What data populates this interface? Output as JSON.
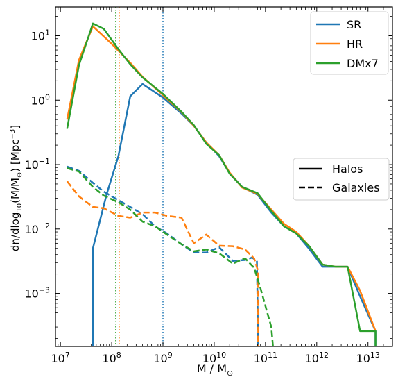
{
  "chart_data": {
    "type": "line",
    "title": "",
    "xlabel_main": "M / M",
    "xlabel_sub": "⊙",
    "ylabel_parts": {
      "a": "dn/dlog",
      "a_sub": "10",
      "b": "(M/M",
      "b_sub": "⊙",
      "c": ") [Mpc",
      "c_sup": "−3",
      "d": "]"
    },
    "xscale": "log",
    "yscale": "log",
    "xlim": [
      8000000.0,
      30000000000000.0
    ],
    "ylim": [
      0.00015,
      28
    ],
    "x_ticks": [
      {
        "value": 10000000.0,
        "base": "10",
        "exp": "7"
      },
      {
        "value": 100000000.0,
        "base": "10",
        "exp": "8"
      },
      {
        "value": 1000000000.0,
        "base": "10",
        "exp": "9"
      },
      {
        "value": 10000000000.0,
        "base": "10",
        "exp": "10"
      },
      {
        "value": 100000000000.0,
        "base": "10",
        "exp": "11"
      },
      {
        "value": 1000000000000.0,
        "base": "10",
        "exp": "12"
      },
      {
        "value": 10000000000000.0,
        "base": "10",
        "exp": "13"
      }
    ],
    "y_ticks": [
      {
        "value": 0.001,
        "base": "10",
        "exp": "−3"
      },
      {
        "value": 0.01,
        "base": "10",
        "exp": "−2"
      },
      {
        "value": 0.1,
        "base": "10",
        "exp": "−1"
      },
      {
        "value": 1,
        "base": "10",
        "exp": "0"
      },
      {
        "value": 10,
        "base": "10",
        "exp": "1"
      }
    ],
    "vlines": [
      {
        "x": 120000000.0,
        "color": "#2ca02c"
      },
      {
        "x": 140000000.0,
        "color": "#ff7f0e"
      },
      {
        "x": 1000000000.0,
        "color": "#1f77b4"
      }
    ],
    "series": [
      {
        "name": "SR",
        "kind": "Halos",
        "color": "#1f77b4",
        "dash": "solid",
        "points": [
          [
            43000000.0,
            0.00015
          ],
          [
            43000000.0,
            0.005
          ],
          [
            80000000.0,
            0.035
          ],
          [
            135000000.0,
            0.135
          ],
          [
            230000000.0,
            1.15
          ],
          [
            400000000.0,
            1.78
          ],
          [
            1000000000.0,
            1.1
          ],
          [
            2300000000.0,
            0.62
          ],
          [
            4000000000.0,
            0.4
          ],
          [
            7000000000.0,
            0.22
          ],
          [
            12500000000.0,
            0.135
          ],
          [
            20000000000.0,
            0.074
          ],
          [
            35000000000.0,
            0.045
          ],
          [
            70000000000.0,
            0.034
          ],
          [
            130000000000.0,
            0.018
          ],
          [
            230000000000.0,
            0.011
          ],
          [
            400000000000.0,
            0.0085
          ],
          [
            700000000000.0,
            0.005
          ],
          [
            1300000000000.0,
            0.0026
          ],
          [
            2300000000000.0,
            0.0026
          ],
          [
            4000000000000.0,
            0.0026
          ],
          [
            7000000000000.0,
            0.0009
          ],
          [
            14000000000000.0,
            0.00026
          ],
          [
            14000000000000.0,
            0.00015
          ]
        ]
      },
      {
        "name": "HR",
        "kind": "Halos",
        "color": "#ff7f0e",
        "dash": "solid",
        "points": [
          [
            13500000.0,
            0.5
          ],
          [
            23000000.0,
            4.2
          ],
          [
            43000000.0,
            14
          ],
          [
            100000000.0,
            7.5
          ],
          [
            230000000.0,
            3.8
          ],
          [
            400000000.0,
            2.3
          ],
          [
            1000000000.0,
            1.2
          ],
          [
            2300000000.0,
            0.65
          ],
          [
            4000000000.0,
            0.4
          ],
          [
            7000000000.0,
            0.22
          ],
          [
            12500000000.0,
            0.14
          ],
          [
            20000000000.0,
            0.075
          ],
          [
            35000000000.0,
            0.044
          ],
          [
            70000000000.0,
            0.035
          ],
          [
            130000000000.0,
            0.02
          ],
          [
            230000000000.0,
            0.012
          ],
          [
            400000000000.0,
            0.009
          ],
          [
            700000000000.0,
            0.0055
          ],
          [
            1300000000000.0,
            0.0028
          ],
          [
            2300000000000.0,
            0.0026
          ],
          [
            4000000000000.0,
            0.0026
          ],
          [
            7000000000000.0,
            0.0011
          ],
          [
            14000000000000.0,
            0.00026
          ]
        ]
      },
      {
        "name": "DMx7",
        "kind": "Halos",
        "color": "#2ca02c",
        "dash": "solid",
        "points": [
          [
            13500000.0,
            0.36
          ],
          [
            23000000.0,
            3.5
          ],
          [
            43000000.0,
            15.5
          ],
          [
            70000000.0,
            12.8
          ],
          [
            135000000.0,
            6.2
          ],
          [
            230000000.0,
            3.6
          ],
          [
            400000000.0,
            2.25
          ],
          [
            1000000000.0,
            1.25
          ],
          [
            2300000000.0,
            0.66
          ],
          [
            4000000000.0,
            0.41
          ],
          [
            7000000000.0,
            0.21
          ],
          [
            12500000000.0,
            0.14
          ],
          [
            20000000000.0,
            0.072
          ],
          [
            35000000000.0,
            0.045
          ],
          [
            70000000000.0,
            0.036
          ],
          [
            130000000000.0,
            0.019
          ],
          [
            230000000000.0,
            0.011
          ],
          [
            400000000000.0,
            0.0085
          ],
          [
            700000000000.0,
            0.0055
          ],
          [
            1300000000000.0,
            0.0028
          ],
          [
            2300000000000.0,
            0.0026
          ],
          [
            4000000000000.0,
            0.0026
          ],
          [
            7000000000000.0,
            0.00026
          ],
          [
            14000000000000.0,
            0.00026
          ],
          [
            14000000000000.0,
            0.00015
          ]
        ]
      },
      {
        "name": "SR",
        "kind": "Galaxies",
        "color": "#1f77b4",
        "dash": "dashed",
        "points": [
          [
            13500000.0,
            0.093
          ],
          [
            23000000.0,
            0.08
          ],
          [
            43000000.0,
            0.052
          ],
          [
            70000000.0,
            0.038
          ],
          [
            135000000.0,
            0.028
          ],
          [
            230000000.0,
            0.022
          ],
          [
            400000000.0,
            0.017
          ],
          [
            700000000.0,
            0.011
          ],
          [
            1200000000.0,
            0.0085
          ],
          [
            2300000000.0,
            0.0058
          ],
          [
            4000000000.0,
            0.0043
          ],
          [
            7000000000.0,
            0.0043
          ],
          [
            12500000000.0,
            0.0052
          ],
          [
            23000000000.0,
            0.0032
          ],
          [
            40000000000.0,
            0.0033
          ],
          [
            55000000000.0,
            0.0036
          ],
          [
            68000000000.0,
            0.0032
          ],
          [
            72000000000.0,
            0.00015
          ]
        ]
      },
      {
        "name": "HR",
        "kind": "Galaxies",
        "color": "#ff7f0e",
        "dash": "dashed",
        "points": [
          [
            13500000.0,
            0.055
          ],
          [
            23000000.0,
            0.032
          ],
          [
            43000000.0,
            0.022
          ],
          [
            70000000.0,
            0.021
          ],
          [
            135000000.0,
            0.016
          ],
          [
            230000000.0,
            0.015
          ],
          [
            400000000.0,
            0.018
          ],
          [
            700000000.0,
            0.018
          ],
          [
            1200000000.0,
            0.016
          ],
          [
            2300000000.0,
            0.015
          ],
          [
            4000000000.0,
            0.006
          ],
          [
            7000000000.0,
            0.0082
          ],
          [
            12500000000.0,
            0.0055
          ],
          [
            23000000000.0,
            0.0054
          ],
          [
            40000000000.0,
            0.0048
          ],
          [
            60000000000.0,
            0.0035
          ],
          [
            72000000000.0,
            0.0022
          ],
          [
            72000000000.0,
            0.00015
          ]
        ]
      },
      {
        "name": "DMx7",
        "kind": "Galaxies",
        "color": "#2ca02c",
        "dash": "dashed",
        "points": [
          [
            13500000.0,
            0.088
          ],
          [
            23000000.0,
            0.078
          ],
          [
            43000000.0,
            0.045
          ],
          [
            70000000.0,
            0.033
          ],
          [
            135000000.0,
            0.026
          ],
          [
            230000000.0,
            0.02
          ],
          [
            400000000.0,
            0.013
          ],
          [
            700000000.0,
            0.011
          ],
          [
            1200000000.0,
            0.0082
          ],
          [
            2300000000.0,
            0.0058
          ],
          [
            4000000000.0,
            0.0045
          ],
          [
            7000000000.0,
            0.0048
          ],
          [
            12500000000.0,
            0.0042
          ],
          [
            23000000000.0,
            0.0029
          ],
          [
            40000000000.0,
            0.0035
          ],
          [
            60000000000.0,
            0.0025
          ],
          [
            80000000000.0,
            0.0012
          ],
          [
            130000000000.0,
            0.0003
          ],
          [
            140000000000.0,
            0.00015
          ]
        ]
      }
    ],
    "legend_series": {
      "placement": "top-right",
      "entries": [
        {
          "label": "SR",
          "color": "#1f77b4"
        },
        {
          "label": "HR",
          "color": "#ff7f0e"
        },
        {
          "label": "DMx7",
          "color": "#2ca02c"
        }
      ]
    },
    "legend_style": {
      "placement": "center-right",
      "entries": [
        {
          "label": "Halos",
          "dash": "solid"
        },
        {
          "label": "Galaxies",
          "dash": "dashed"
        }
      ]
    }
  }
}
